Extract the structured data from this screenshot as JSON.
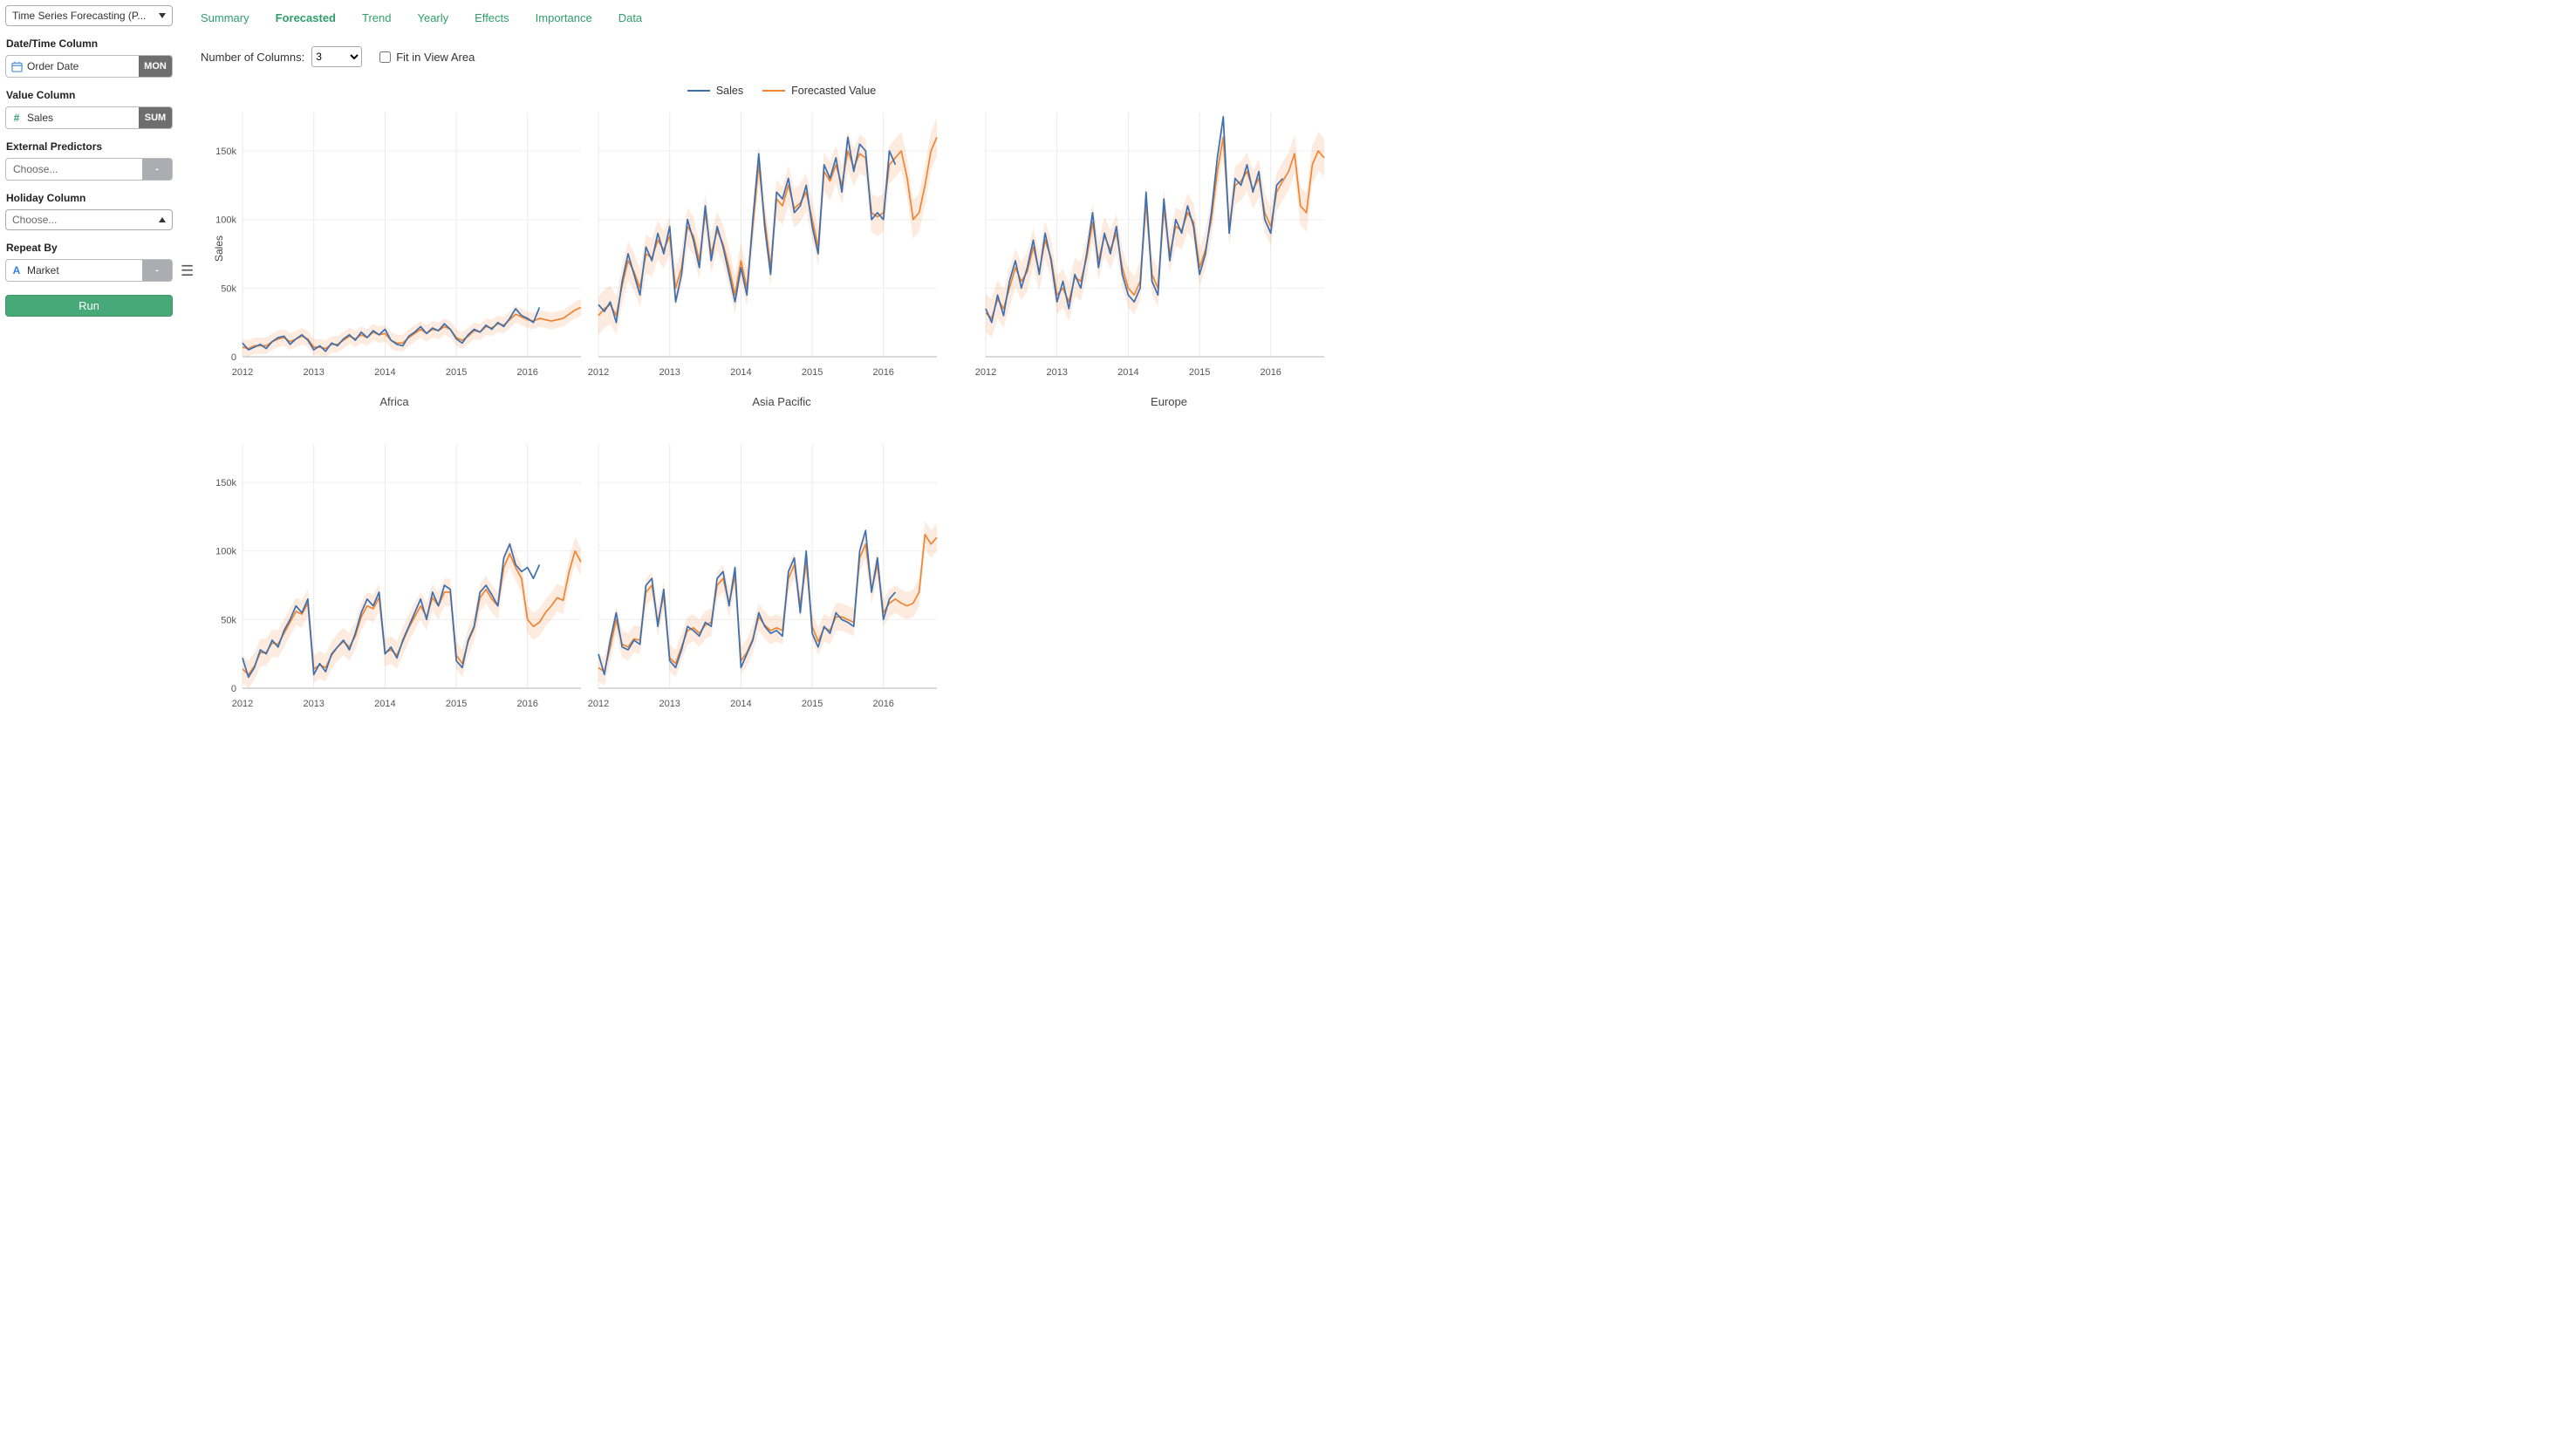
{
  "sidebar": {
    "analytics_type": "Time Series Forecasting (P...",
    "date_column": {
      "label": "Date/Time Column",
      "value": "Order Date",
      "period": "MON"
    },
    "value_column": {
      "label": "Value Column",
      "value": "Sales",
      "aggregate": "SUM"
    },
    "external_predictors": {
      "label": "External Predictors",
      "value": "Choose...",
      "button": "-"
    },
    "holiday_column": {
      "label": "Holiday Column",
      "value": "Choose..."
    },
    "repeat_by": {
      "label": "Repeat By",
      "value": "Market",
      "button": "-"
    },
    "run_label": "Run"
  },
  "icons": {
    "calendar": "calendar-icon",
    "hash": "hash-icon",
    "text_a": "text-a-icon",
    "menu": "hamburger-menu-icon",
    "caret_down": "chevron-down-icon",
    "caret_up": "chevron-up-icon"
  },
  "tabs": [
    "Summary",
    "Forecasted",
    "Trend",
    "Yearly",
    "Effects",
    "Importance",
    "Data"
  ],
  "active_tab": "Forecasted",
  "controls": {
    "columns_label": "Number of Columns:",
    "columns_value": "3",
    "fit_label": "Fit in View Area",
    "fit_checked": false
  },
  "legend": [
    {
      "label": "Sales",
      "color": "#3a6fb0"
    },
    {
      "label": "Forecasted Value",
      "color": "#ef8433"
    }
  ],
  "y_axis_title": "Sales",
  "colors": {
    "actual_line": "#3a6fb0",
    "forecast_line": "#ef8433",
    "forecast_band": "rgba(239,132,51,0.16)",
    "accent_green": "#2e9e6b"
  },
  "chart_data": {
    "type": "line",
    "x_ticks": [
      "2012",
      "2013",
      "2014",
      "2015",
      "2016"
    ],
    "y_ticks": [
      "0",
      "50k",
      "100k",
      "150k"
    ],
    "y_tick_values": [
      0,
      50,
      100,
      150
    ],
    "y_max": 178,
    "unit": "thousands",
    "series_names": [
      "Sales",
      "Forecasted Value"
    ],
    "charts": [
      {
        "title": "Africa",
        "show_y_labels": true,
        "band": 6,
        "actual": [
          10,
          5,
          7,
          9,
          6,
          11,
          14,
          15,
          9,
          13,
          16,
          12,
          5,
          8,
          4,
          10,
          8,
          13,
          16,
          12,
          18,
          14,
          19,
          16,
          20,
          12,
          9,
          8,
          15,
          18,
          22,
          17,
          21,
          19,
          24,
          20,
          13,
          10,
          16,
          20,
          18,
          23,
          20,
          25,
          22,
          28,
          35,
          30,
          28,
          25,
          36
        ],
        "forecast": [
          7,
          6,
          8,
          8,
          8,
          11,
          13,
          14,
          11,
          13,
          15,
          13,
          7,
          7,
          6,
          9,
          9,
          12,
          15,
          13,
          16,
          14,
          18,
          16,
          17,
          12,
          10,
          10,
          14,
          17,
          20,
          17,
          20,
          19,
          22,
          20,
          14,
          12,
          15,
          19,
          18,
          22,
          21,
          24,
          23,
          27,
          31,
          29,
          27,
          26,
          28,
          27,
          26,
          27,
          28,
          31,
          34,
          36
        ]
      },
      {
        "title": "Asia Pacific",
        "show_y_labels": false,
        "band": 14,
        "actual": [
          38,
          33,
          40,
          25,
          55,
          75,
          60,
          45,
          80,
          70,
          90,
          75,
          95,
          40,
          60,
          100,
          85,
          65,
          110,
          70,
          95,
          80,
          60,
          40,
          65,
          45,
          100,
          148,
          95,
          60,
          120,
          115,
          130,
          105,
          110,
          125,
          95,
          75,
          140,
          130,
          145,
          120,
          160,
          135,
          155,
          150,
          100,
          105,
          100,
          150,
          140
        ],
        "forecast": [
          30,
          35,
          38,
          30,
          52,
          70,
          62,
          50,
          75,
          72,
          85,
          78,
          88,
          50,
          65,
          95,
          88,
          70,
          105,
          75,
          92,
          82,
          65,
          45,
          70,
          50,
          95,
          140,
          100,
          65,
          115,
          110,
          125,
          108,
          112,
          120,
          100,
          80,
          135,
          128,
          140,
          125,
          150,
          138,
          148,
          145,
          105,
          102,
          105,
          140,
          145,
          150,
          130,
          100,
          105,
          125,
          150,
          160
        ]
      },
      {
        "title": "Europe",
        "show_y_labels": false,
        "band": 14,
        "actual": [
          35,
          25,
          45,
          30,
          55,
          70,
          50,
          65,
          85,
          60,
          90,
          70,
          40,
          55,
          35,
          60,
          50,
          75,
          105,
          65,
          90,
          75,
          95,
          60,
          45,
          40,
          50,
          120,
          55,
          45,
          115,
          70,
          100,
          90,
          110,
          95,
          60,
          75,
          105,
          145,
          175,
          90,
          130,
          125,
          140,
          120,
          135,
          100,
          90,
          125,
          130
        ],
        "forecast": [
          32,
          28,
          42,
          35,
          50,
          65,
          55,
          62,
          80,
          62,
          85,
          72,
          45,
          50,
          40,
          58,
          55,
          72,
          98,
          70,
          88,
          78,
          90,
          65,
          50,
          45,
          55,
          112,
          60,
          50,
          108,
          75,
          95,
          92,
          105,
          98,
          65,
          78,
          100,
          135,
          160,
          95,
          125,
          128,
          135,
          122,
          130,
          105,
          95,
          120,
          128,
          135,
          148,
          110,
          105,
          140,
          150,
          145
        ]
      },
      {
        "title": "",
        "show_y_labels": true,
        "band": 10,
        "actual": [
          22,
          8,
          15,
          28,
          25,
          35,
          30,
          42,
          50,
          60,
          55,
          65,
          10,
          18,
          12,
          25,
          30,
          35,
          28,
          40,
          55,
          65,
          60,
          70,
          25,
          30,
          22,
          35,
          45,
          55,
          65,
          50,
          70,
          60,
          75,
          72,
          20,
          15,
          35,
          45,
          70,
          75,
          68,
          60,
          95,
          105,
          90,
          85,
          88,
          80,
          90
        ],
        "forecast": [
          14,
          10,
          16,
          26,
          26,
          33,
          32,
          40,
          48,
          56,
          54,
          62,
          14,
          17,
          15,
          24,
          30,
          34,
          30,
          38,
          52,
          60,
          58,
          66,
          26,
          28,
          24,
          34,
          44,
          52,
          60,
          52,
          66,
          60,
          70,
          70,
          24,
          18,
          34,
          44,
          66,
          72,
          65,
          60,
          88,
          98,
          88,
          80,
          50,
          45,
          48,
          55,
          60,
          66,
          64,
          85,
          100,
          92
        ]
      },
      {
        "title": "",
        "show_y_labels": false,
        "band": 10,
        "actual": [
          25,
          10,
          35,
          55,
          30,
          28,
          35,
          32,
          75,
          80,
          45,
          72,
          20,
          15,
          28,
          45,
          42,
          38,
          48,
          45,
          80,
          85,
          60,
          88,
          15,
          25,
          35,
          55,
          45,
          40,
          42,
          38,
          85,
          95,
          55,
          100,
          40,
          30,
          45,
          40,
          55,
          50,
          48,
          45,
          100,
          115,
          70,
          95,
          50,
          65,
          70
        ],
        "forecast": [
          15,
          12,
          30,
          50,
          32,
          30,
          36,
          35,
          70,
          75,
          48,
          68,
          22,
          18,
          30,
          42,
          44,
          40,
          46,
          48,
          75,
          80,
          62,
          82,
          20,
          26,
          36,
          52,
          46,
          42,
          44,
          42,
          80,
          90,
          60,
          92,
          45,
          34,
          44,
          42,
          52,
          52,
          50,
          48,
          95,
          105,
          72,
          90,
          55,
          62,
          65,
          62,
          60,
          62,
          70,
          112,
          105,
          110
        ]
      }
    ]
  }
}
